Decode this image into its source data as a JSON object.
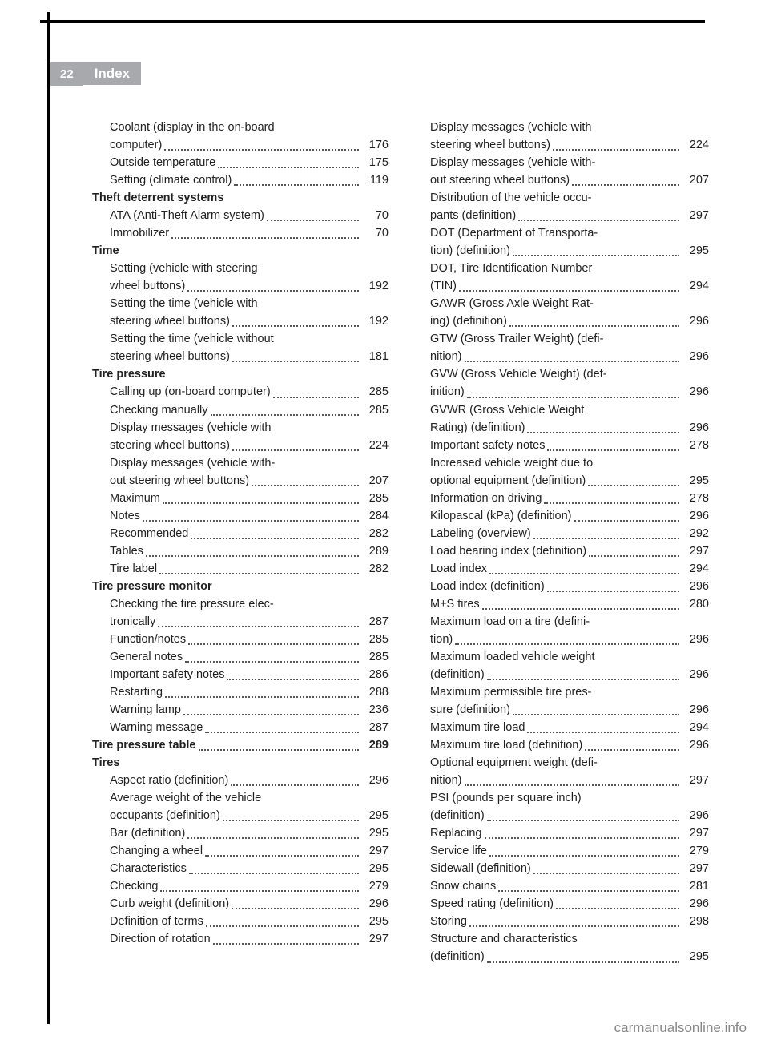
{
  "page_number": "22",
  "header_title": "Index",
  "footer_text": "carmanualsonline.info",
  "columns": [
    [
      {
        "type": "sub",
        "label": "Coolant (display in the on-board",
        "cont": "computer)",
        "page": "176"
      },
      {
        "type": "sub",
        "label": "Outside temperature",
        "page": "175"
      },
      {
        "type": "sub",
        "label": "Setting (climate control)",
        "page": "119"
      },
      {
        "type": "head",
        "label": "Theft deterrent systems"
      },
      {
        "type": "sub",
        "label": "ATA (Anti-Theft Alarm system)",
        "page": "70"
      },
      {
        "type": "sub",
        "label": "Immobilizer",
        "page": "70"
      },
      {
        "type": "head",
        "label": "Time"
      },
      {
        "type": "sub",
        "label": "Setting (vehicle with steering",
        "cont": "wheel buttons)",
        "page": "192"
      },
      {
        "type": "sub",
        "label": "Setting the time (vehicle with",
        "cont": "steering wheel buttons)",
        "page": "192"
      },
      {
        "type": "sub",
        "label": "Setting the time (vehicle without",
        "cont": "steering wheel buttons)",
        "page": "181"
      },
      {
        "type": "head",
        "label": "Tire pressure"
      },
      {
        "type": "sub",
        "label": "Calling up (on-board computer)",
        "page": "285"
      },
      {
        "type": "sub",
        "label": "Checking manually",
        "page": "285"
      },
      {
        "type": "sub",
        "label": "Display messages (vehicle with",
        "cont": "steering wheel buttons)",
        "page": "224"
      },
      {
        "type": "sub",
        "label": "Display messages (vehicle with-",
        "cont": "out steering wheel buttons)",
        "page": "207"
      },
      {
        "type": "sub",
        "label": "Maximum",
        "page": "285"
      },
      {
        "type": "sub",
        "label": "Notes",
        "page": "284"
      },
      {
        "type": "sub",
        "label": "Recommended",
        "page": "282"
      },
      {
        "type": "sub",
        "label": "Tables",
        "page": "289"
      },
      {
        "type": "sub",
        "label": "Tire label",
        "page": "282"
      },
      {
        "type": "head",
        "label": "Tire pressure monitor"
      },
      {
        "type": "sub",
        "label": "Checking the tire pressure elec-",
        "cont": "tronically",
        "page": "287"
      },
      {
        "type": "sub",
        "label": "Function/notes",
        "page": "285"
      },
      {
        "type": "sub",
        "label": "General notes",
        "page": "285"
      },
      {
        "type": "sub",
        "label": "Important safety notes",
        "page": "286"
      },
      {
        "type": "sub",
        "label": "Restarting",
        "page": "288"
      },
      {
        "type": "sub",
        "label": "Warning lamp",
        "page": "236"
      },
      {
        "type": "sub",
        "label": "Warning message",
        "page": "287"
      },
      {
        "type": "boldentry",
        "label": "Tire pressure table",
        "page": "289"
      },
      {
        "type": "head",
        "label": "Tires"
      },
      {
        "type": "sub",
        "label": "Aspect ratio (definition)",
        "page": "296"
      },
      {
        "type": "sub",
        "label": "Average weight of the vehicle",
        "cont": "occupants (definition)",
        "page": "295"
      },
      {
        "type": "sub",
        "label": "Bar (definition)",
        "page": "295"
      },
      {
        "type": "sub",
        "label": "Changing a wheel",
        "page": "297"
      },
      {
        "type": "sub",
        "label": "Characteristics",
        "page": "295"
      },
      {
        "type": "sub",
        "label": "Checking",
        "page": "279"
      },
      {
        "type": "sub",
        "label": "Curb weight (definition)",
        "page": "296"
      },
      {
        "type": "sub",
        "label": "Definition of terms",
        "page": "295"
      },
      {
        "type": "sub",
        "label": "Direction of rotation",
        "page": "297"
      }
    ],
    [
      {
        "type": "sub",
        "label": "Display messages (vehicle with",
        "cont": "steering wheel buttons)",
        "page": "224"
      },
      {
        "type": "sub",
        "label": "Display messages (vehicle with-",
        "cont": "out steering wheel buttons)",
        "page": "207"
      },
      {
        "type": "sub",
        "label": "Distribution of the vehicle occu-",
        "cont": "pants (definition)",
        "page": "297"
      },
      {
        "type": "sub",
        "label": "DOT (Department of Transporta-",
        "cont": "tion) (definition)",
        "page": "295"
      },
      {
        "type": "sub",
        "label": "DOT, Tire Identification Number",
        "cont": "(TIN)",
        "page": "294"
      },
      {
        "type": "sub",
        "label": "GAWR (Gross Axle Weight Rat-",
        "cont": "ing) (definition)",
        "page": "296"
      },
      {
        "type": "sub",
        "label": "GTW (Gross Trailer Weight) (defi-",
        "cont": "nition)",
        "page": "296"
      },
      {
        "type": "sub",
        "label": "GVW (Gross Vehicle Weight) (def-",
        "cont": "inition)",
        "page": "296"
      },
      {
        "type": "sub",
        "label": "GVWR (Gross Vehicle Weight",
        "cont": "Rating) (definition)",
        "page": "296"
      },
      {
        "type": "sub",
        "label": "Important safety notes",
        "page": "278"
      },
      {
        "type": "sub",
        "label": "Increased vehicle weight due to",
        "cont": "optional equipment (definition)",
        "page": "295"
      },
      {
        "type": "sub",
        "label": "Information on driving",
        "page": "278"
      },
      {
        "type": "sub",
        "label": "Kilopascal (kPa) (definition)",
        "page": "296"
      },
      {
        "type": "sub",
        "label": "Labeling (overview)",
        "page": "292"
      },
      {
        "type": "sub",
        "label": "Load bearing index (definition)",
        "page": "297"
      },
      {
        "type": "sub",
        "label": "Load index",
        "page": "294"
      },
      {
        "type": "sub",
        "label": "Load index (definition)",
        "page": "296"
      },
      {
        "type": "sub",
        "label": "M+S tires",
        "page": "280"
      },
      {
        "type": "sub",
        "label": "Maximum load on a tire (defini-",
        "cont": "tion)",
        "page": "296"
      },
      {
        "type": "sub",
        "label": "Maximum loaded vehicle weight",
        "cont": "(definition)",
        "page": "296"
      },
      {
        "type": "sub",
        "label": "Maximum permissible tire pres-",
        "cont": "sure (definition)",
        "page": "296"
      },
      {
        "type": "sub",
        "label": "Maximum tire load",
        "page": "294"
      },
      {
        "type": "sub",
        "label": "Maximum tire load (definition)",
        "page": "296"
      },
      {
        "type": "sub",
        "label": "Optional equipment weight (defi-",
        "cont": "nition)",
        "page": "297"
      },
      {
        "type": "sub",
        "label": "PSI (pounds per square inch)",
        "cont": "(definition)",
        "page": "296"
      },
      {
        "type": "sub",
        "label": "Replacing",
        "page": "297"
      },
      {
        "type": "sub",
        "label": "Service life",
        "page": "279"
      },
      {
        "type": "sub",
        "label": "Sidewall (definition)",
        "page": "297"
      },
      {
        "type": "sub",
        "label": "Snow chains",
        "page": "281"
      },
      {
        "type": "sub",
        "label": "Speed rating (definition)",
        "page": "296"
      },
      {
        "type": "sub",
        "label": "Storing",
        "page": "298"
      },
      {
        "type": "sub",
        "label": "Structure and characteristics",
        "cont": "(definition)",
        "page": "295"
      }
    ]
  ]
}
